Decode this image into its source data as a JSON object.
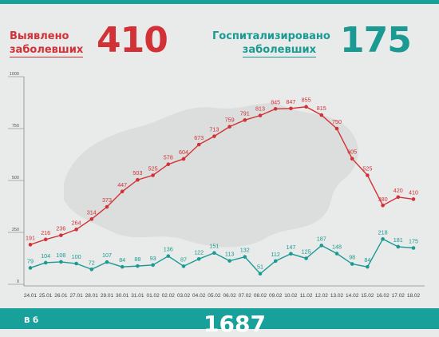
{
  "header": {
    "detected_label_line1": "Выявлено",
    "detected_label_line2": "заболевших",
    "detected_value": "410",
    "hospitalized_label_line1": "Госпитализировано",
    "hospitalized_label_line2": "заболевших",
    "hospitalized_value": "175"
  },
  "footer": {
    "text_left": "В б",
    "text_value": "1687"
  },
  "colors": {
    "detected": "#d23236",
    "hospitalized": "#1a9a93",
    "band": "#17a19a",
    "background": "#e9eaea",
    "map": "#dcdddd"
  },
  "chart_data": {
    "type": "line",
    "title": "",
    "xlabel": "",
    "ylabel": "",
    "ylim": [
      0,
      1000
    ],
    "yticks": [
      0,
      250,
      500,
      750,
      1000
    ],
    "grid": false,
    "x": [
      "24.01",
      "25.01",
      "26.01",
      "27.01",
      "28.01",
      "29.01",
      "30.01",
      "31.01",
      "01.02",
      "02.02",
      "03.02",
      "04.02",
      "05.02",
      "06.02",
      "07.02",
      "08.02",
      "09.02",
      "10.02",
      "11.02",
      "12.02",
      "13.02",
      "14.02",
      "15.02",
      "16.02",
      "17.02",
      "18.02"
    ],
    "series": [
      {
        "values": [
          191,
          216,
          236,
          264,
          314,
          373,
          447,
          503,
          525,
          578,
          604,
          673,
          713,
          759,
          791,
          813,
          845,
          847,
          855,
          815,
          750,
          605,
          525,
          380,
          420,
          410
        ],
        "color": "#d23236"
      },
      {
        "values": [
          79,
          104,
          108,
          100,
          72,
          107,
          84,
          88,
          93,
          136,
          87,
          122,
          151,
          113,
          132,
          51,
          112,
          147,
          125,
          187,
          148,
          98,
          84,
          218,
          181,
          175
        ],
        "color": "#1a9a93"
      }
    ]
  }
}
